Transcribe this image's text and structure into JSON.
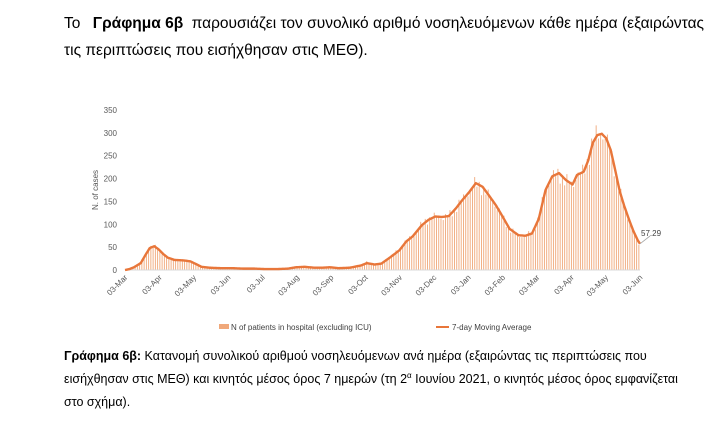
{
  "intro": {
    "lead": "Το",
    "figure_ref": "Γράφημα 6β",
    "text": "παρουσιάζει τον συνολικό αριθμό νοσηλευόμενων κάθε ημέρα (εξαιρώντας τις περιπτώσεις που εισήχθησαν στις ΜΕΘ)."
  },
  "caption": {
    "label": "Γράφημα 6β:",
    "text_part1": "Κατανομή συνολικού αριθμού νοσηλευόμενων ανά ημέρα (εξαιρώντας τις περιπτώσεις που εισήχθησαν στις ΜΕΘ) και κινητός μέσος όρος 7 ημερών (τη 2",
    "superscript": "α",
    "text_part2": "Ιουνίου 2021, ο κινητός μέσος όρος εμφανίζεται στο σχήμα)."
  },
  "colors": {
    "bars": "#f0a87a",
    "line": "#e8763a",
    "axis_text": "#595959",
    "axis_line": "#d9d9d9"
  },
  "chart_data": {
    "type": "bar",
    "ylabel": "N. of cases",
    "ylim": [
      0,
      350
    ],
    "yticks": [
      0,
      50,
      100,
      150,
      200,
      250,
      300,
      350
    ],
    "xticks": [
      "03-Mar",
      "03-Apr",
      "03-May",
      "03-Jun",
      "03-Jul",
      "03-Aug",
      "03-Sep",
      "03-Oct",
      "03-Nov",
      "03-Dec",
      "03-Jan",
      "03-Feb",
      "03-Mar",
      "03-Apr",
      "03-May",
      "03-Jun"
    ],
    "grid": false,
    "legend_position": "bottom",
    "annotation": "57.29",
    "series": [
      {
        "name": "N of patients in hospital (excluding ICU)",
        "type": "bar",
        "keypoints": [
          [
            0,
            0
          ],
          [
            4,
            3
          ],
          [
            8,
            8
          ],
          [
            14,
            18
          ],
          [
            18,
            35
          ],
          [
            22,
            50
          ],
          [
            26,
            52
          ],
          [
            30,
            45
          ],
          [
            34,
            34
          ],
          [
            38,
            26
          ],
          [
            44,
            22
          ],
          [
            52,
            22
          ],
          [
            58,
            20
          ],
          [
            64,
            12
          ],
          [
            68,
            7
          ],
          [
            75,
            5
          ],
          [
            85,
            4
          ],
          [
            95,
            4
          ],
          [
            105,
            3
          ],
          [
            115,
            3
          ],
          [
            125,
            2
          ],
          [
            135,
            2
          ],
          [
            145,
            3
          ],
          [
            152,
            7
          ],
          [
            160,
            8
          ],
          [
            168,
            4
          ],
          [
            175,
            5
          ],
          [
            182,
            7
          ],
          [
            190,
            3
          ],
          [
            200,
            5
          ],
          [
            210,
            12
          ],
          [
            215,
            18
          ],
          [
            222,
            12
          ],
          [
            228,
            15
          ],
          [
            236,
            30
          ],
          [
            244,
            45
          ],
          [
            250,
            65
          ],
          [
            256,
            75
          ],
          [
            264,
            100
          ],
          [
            270,
            112
          ],
          [
            276,
            118
          ],
          [
            282,
            115
          ],
          [
            288,
            118
          ],
          [
            294,
            135
          ],
          [
            300,
            155
          ],
          [
            306,
            172
          ],
          [
            312,
            190
          ],
          [
            318,
            180
          ],
          [
            324,
            160
          ],
          [
            330,
            140
          ],
          [
            336,
            115
          ],
          [
            342,
            90
          ],
          [
            350,
            75
          ],
          [
            356,
            75
          ],
          [
            362,
            82
          ],
          [
            368,
            115
          ],
          [
            374,
            180
          ],
          [
            380,
            205
          ],
          [
            386,
            210
          ],
          [
            392,
            195
          ],
          [
            398,
            185
          ],
          [
            402,
            210
          ],
          [
            408,
            215
          ],
          [
            412,
            245
          ],
          [
            416,
            280
          ],
          [
            420,
            298
          ],
          [
            424,
            300
          ],
          [
            428,
            285
          ],
          [
            432,
            260
          ],
          [
            436,
            215
          ],
          [
            440,
            170
          ],
          [
            444,
            140
          ],
          [
            448,
            110
          ],
          [
            452,
            85
          ],
          [
            456,
            62
          ],
          [
            458,
            55
          ]
        ]
      },
      {
        "name": "7-day Moving Average",
        "type": "line",
        "keypoints": [
          [
            0,
            0
          ],
          [
            4,
            2
          ],
          [
            8,
            6
          ],
          [
            14,
            15
          ],
          [
            18,
            32
          ],
          [
            22,
            48
          ],
          [
            26,
            52
          ],
          [
            30,
            45
          ],
          [
            34,
            35
          ],
          [
            38,
            27
          ],
          [
            44,
            22
          ],
          [
            52,
            21
          ],
          [
            58,
            19
          ],
          [
            64,
            12
          ],
          [
            68,
            7
          ],
          [
            75,
            5
          ],
          [
            85,
            4
          ],
          [
            95,
            4
          ],
          [
            105,
            3
          ],
          [
            115,
            3
          ],
          [
            125,
            2
          ],
          [
            135,
            2
          ],
          [
            145,
            3
          ],
          [
            152,
            6
          ],
          [
            160,
            7
          ],
          [
            168,
            5
          ],
          [
            175,
            5
          ],
          [
            182,
            6
          ],
          [
            190,
            4
          ],
          [
            200,
            5
          ],
          [
            210,
            10
          ],
          [
            215,
            15
          ],
          [
            222,
            12
          ],
          [
            228,
            14
          ],
          [
            236,
            28
          ],
          [
            244,
            43
          ],
          [
            250,
            62
          ],
          [
            256,
            74
          ],
          [
            264,
            98
          ],
          [
            270,
            110
          ],
          [
            276,
            117
          ],
          [
            282,
            116
          ],
          [
            288,
            118
          ],
          [
            294,
            134
          ],
          [
            300,
            153
          ],
          [
            306,
            170
          ],
          [
            312,
            190
          ],
          [
            318,
            182
          ],
          [
            324,
            162
          ],
          [
            330,
            141
          ],
          [
            336,
            116
          ],
          [
            342,
            90
          ],
          [
            350,
            76
          ],
          [
            356,
            75
          ],
          [
            362,
            80
          ],
          [
            368,
            112
          ],
          [
            374,
            175
          ],
          [
            380,
            205
          ],
          [
            386,
            212
          ],
          [
            392,
            197
          ],
          [
            398,
            187
          ],
          [
            402,
            208
          ],
          [
            408,
            215
          ],
          [
            412,
            240
          ],
          [
            416,
            278
          ],
          [
            420,
            295
          ],
          [
            424,
            298
          ],
          [
            428,
            288
          ],
          [
            432,
            262
          ],
          [
            436,
            218
          ],
          [
            440,
            172
          ],
          [
            444,
            140
          ],
          [
            448,
            112
          ],
          [
            452,
            86
          ],
          [
            456,
            65
          ],
          [
            458,
            57.29
          ]
        ]
      }
    ]
  }
}
